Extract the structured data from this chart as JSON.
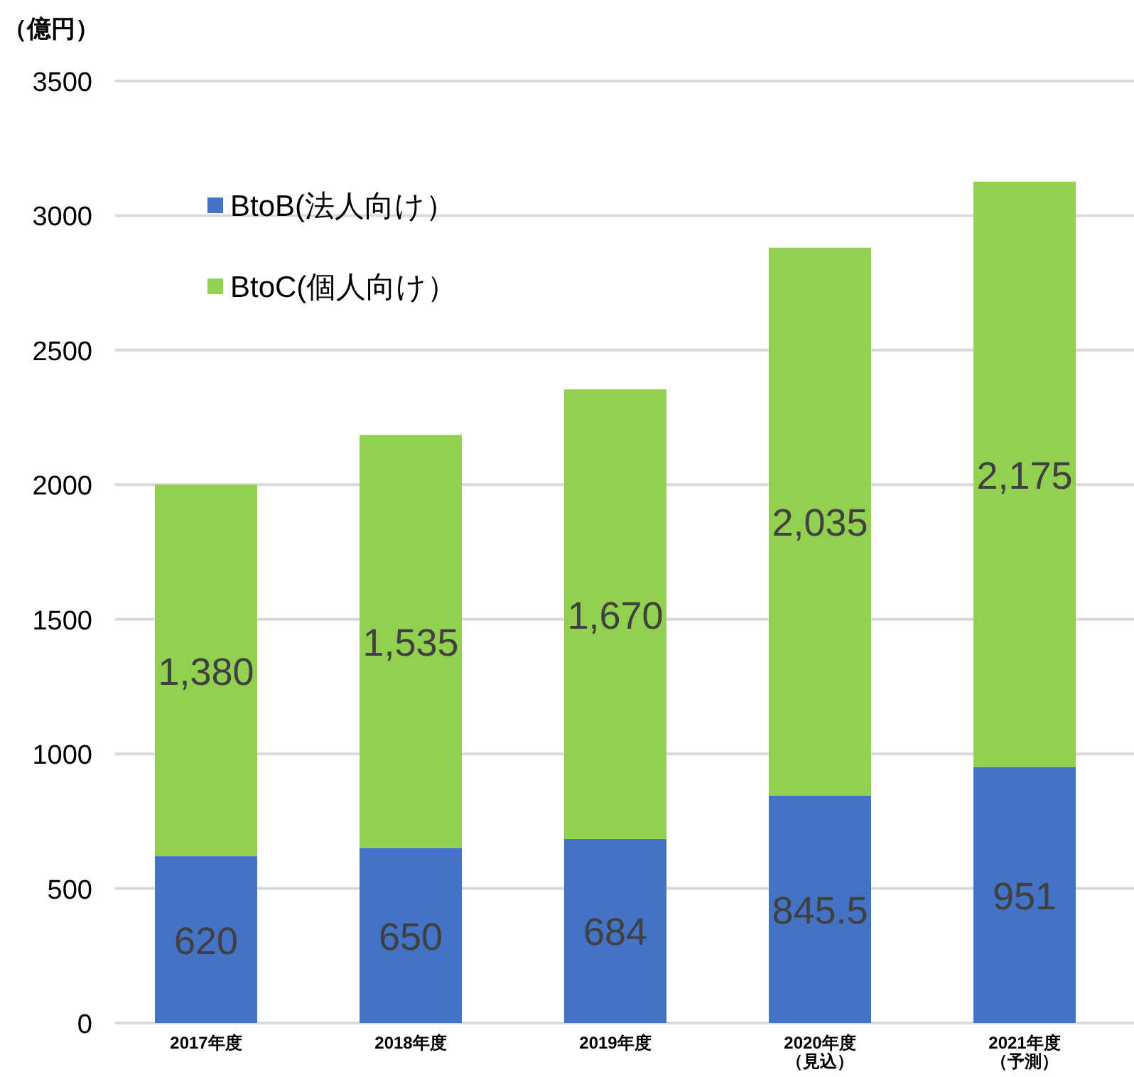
{
  "chart_data": {
    "type": "bar",
    "stacked": true,
    "ylabel": "（億円）",
    "categories": [
      "2017年度",
      "2018年度",
      "2019年度",
      "2020年度（見込）",
      "2021年度（予測）"
    ],
    "series": [
      {
        "name": "BtoB(法人向け）",
        "color": "#4472c4",
        "values": [
          620,
          650,
          684,
          845.5,
          951
        ],
        "value_labels": [
          "620",
          "650",
          "684",
          "845.5",
          "951"
        ]
      },
      {
        "name": "BtoC(個人向け）",
        "color": "#92d050",
        "values": [
          1380,
          1535,
          1670,
          2035,
          2175
        ],
        "value_labels": [
          "1,380",
          "1,535",
          "1,670",
          "2,035",
          "2,175"
        ]
      }
    ],
    "ylim": [
      0,
      3500
    ],
    "yticks": [
      0,
      500,
      1000,
      1500,
      2000,
      2500,
      3000,
      3500
    ],
    "grid": "y",
    "legend": "top left"
  }
}
